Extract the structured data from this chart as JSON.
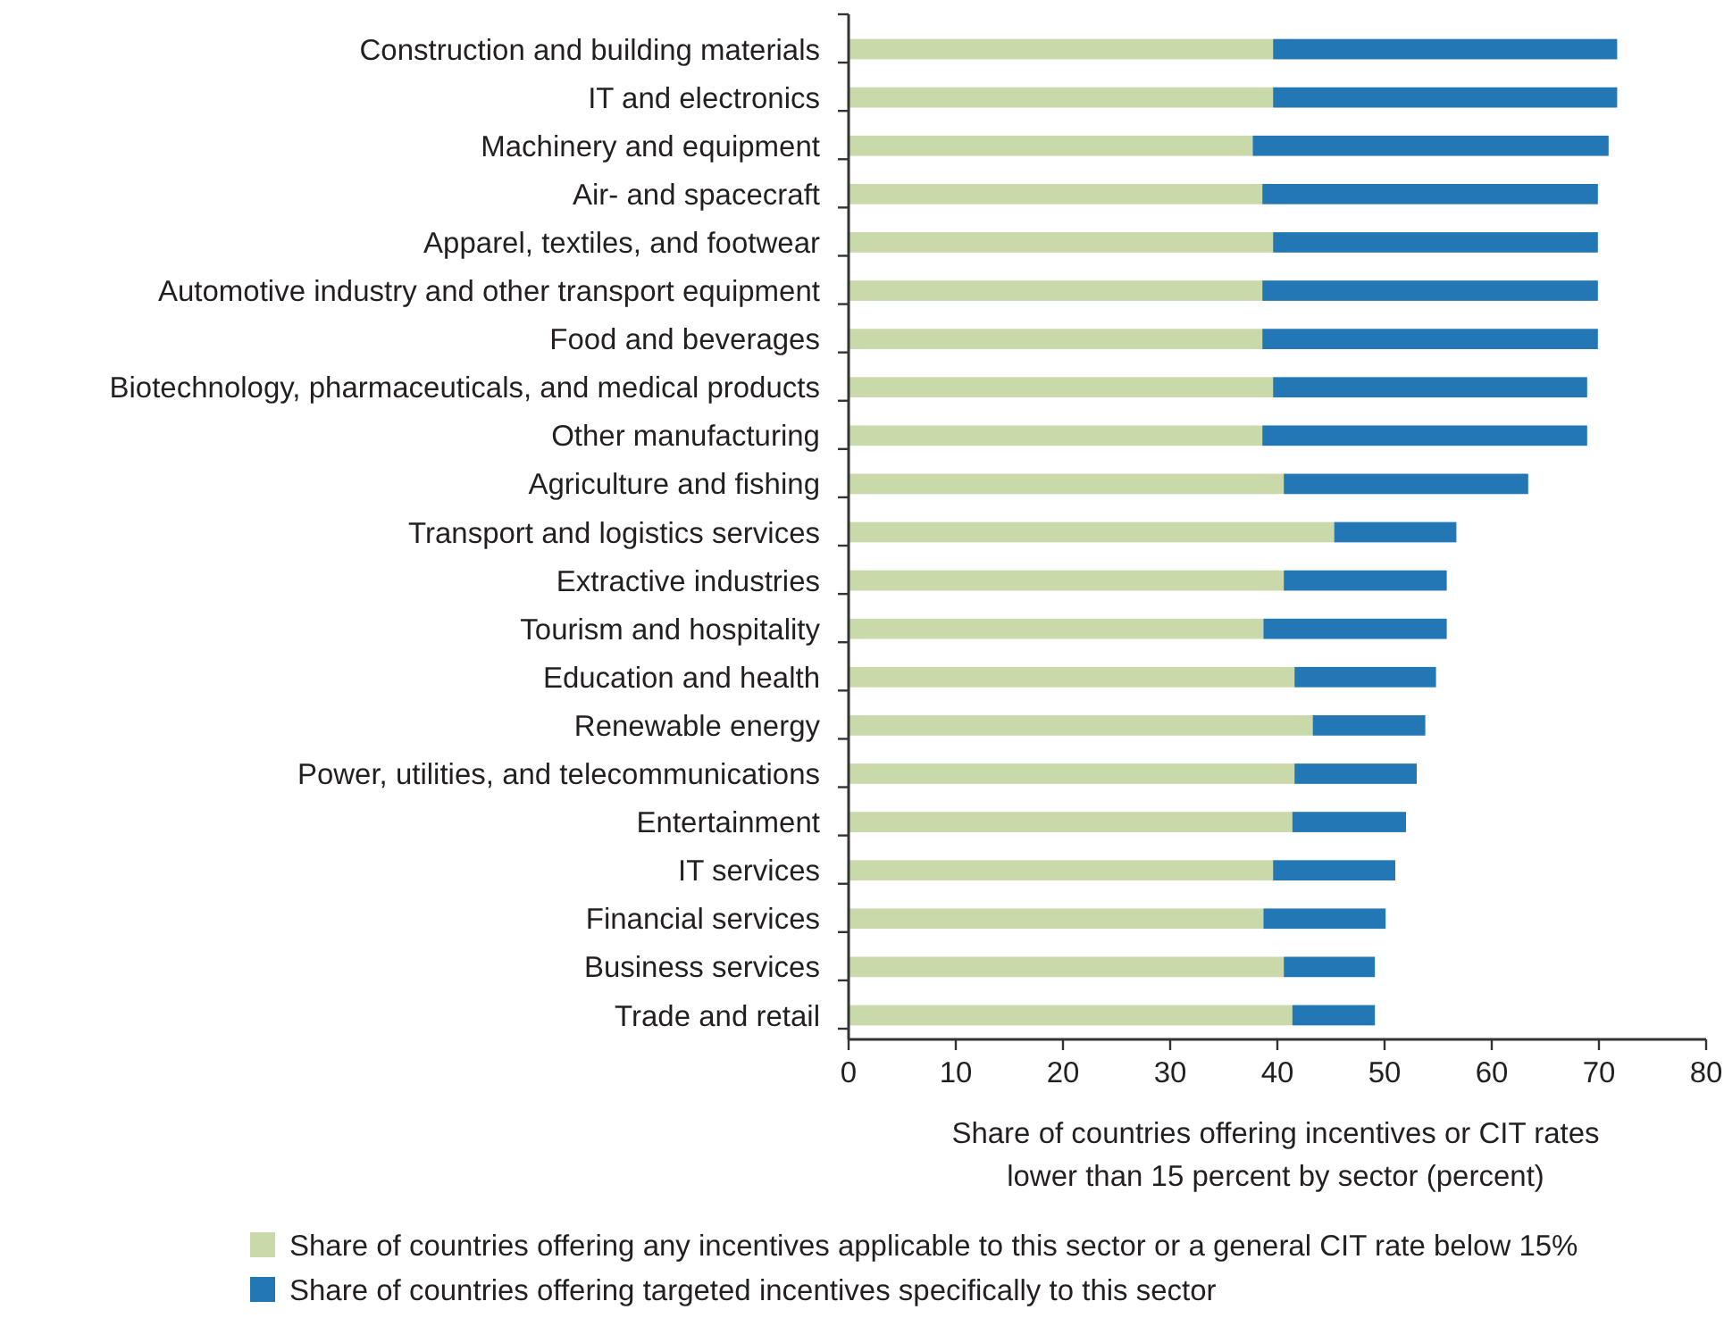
{
  "chart_data": {
    "type": "bar",
    "orientation": "horizontal",
    "stacked": true,
    "legend": "bottom",
    "grid": false,
    "xlabel": "Share of countries offering incentives or CIT rates lower than 15 percent by sector (percent)",
    "categories": [
      "Construction and building materials",
      "IT and electronics",
      "Machinery and equipment",
      "Air- and spacecraft",
      "Apparel, textiles, and footwear",
      "Automotive industry and other transport equipment",
      "Food and beverages",
      "Biotechnology, pharmaceuticals, and medical products",
      "Other manufacturing",
      "Agriculture and fishing",
      "Transport and logistics services",
      "Extractive industries",
      "Tourism and hospitality",
      "Education and health",
      "Renewable energy",
      "Power, utilities, and telecommunications",
      "Entertainment",
      "IT services",
      "Financial services",
      "Business services",
      "Trade and retail"
    ],
    "series": [
      {
        "name": "Share of countries offering any incentives applicable to this sector or a general CIT rate below 15%",
        "color": "#c9d9a9",
        "values": [
          39.6,
          39.6,
          37.7,
          38.6,
          39.6,
          38.6,
          38.6,
          39.6,
          38.6,
          40.6,
          45.3,
          40.6,
          38.7,
          41.6,
          43.3,
          41.6,
          41.4,
          39.6,
          38.7,
          40.6,
          41.4
        ]
      },
      {
        "name": "Share of countries offering targeted incentives specifically to this sector",
        "color": "#2277b4",
        "values": [
          32.1,
          32.1,
          33.2,
          31.3,
          30.3,
          31.3,
          31.3,
          29.3,
          30.3,
          22.8,
          11.4,
          15.2,
          17.1,
          13.2,
          10.5,
          11.4,
          10.6,
          11.4,
          11.4,
          8.5,
          7.7
        ]
      }
    ],
    "xlim": [
      0,
      80
    ],
    "xticks": [
      0,
      10,
      20,
      30,
      40,
      50,
      60,
      70,
      80
    ]
  }
}
